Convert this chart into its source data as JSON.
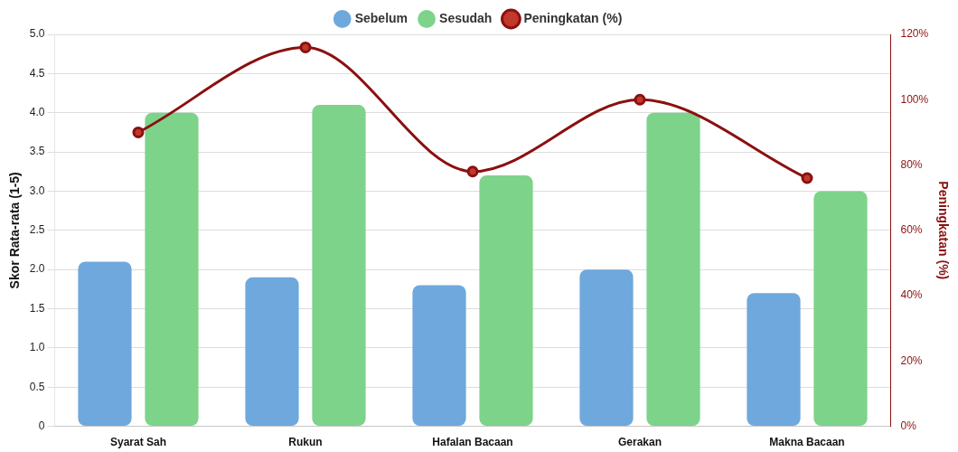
{
  "chart_data": {
    "type": "bar",
    "categories": [
      "Syarat Sah",
      "Rukun",
      "Hafalan Bacaan",
      "Gerakan",
      "Makna Bacaan"
    ],
    "series": [
      {
        "name": "Sebelum",
        "color": "#6fa8dc",
        "values": [
          2.1,
          1.9,
          1.8,
          2.0,
          1.7
        ]
      },
      {
        "name": "Sesudah",
        "color": "#7dd38a",
        "values": [
          4.0,
          4.1,
          3.2,
          4.0,
          3.0
        ]
      },
      {
        "name": "Peningkatan (%)",
        "type": "line",
        "axis": "y2",
        "color": "#8b1010",
        "values": [
          90,
          116,
          78,
          100,
          76
        ]
      }
    ],
    "ylabel": "Skor Rata-rata (1-5)",
    "y2label": "Peningkatan (%)",
    "ylim": [
      0,
      5
    ],
    "yticks": [
      {
        "value": 0,
        "label": "0"
      },
      0.5,
      {
        "value": 1,
        "label": "1.0"
      },
      1.5,
      {
        "value": 2,
        "label": "2.0"
      },
      2.5,
      {
        "value": 3,
        "label": "3.0"
      },
      3.5,
      {
        "value": 4,
        "label": "4.0"
      },
      4.5,
      {
        "value": 5,
        "label": "5.0"
      }
    ],
    "y2lim": [
      0,
      120
    ],
    "y2ticks": [
      {
        "value": 0,
        "label": "0%"
      },
      {
        "value": 20,
        "label": "20%"
      },
      {
        "value": 40,
        "label": "40%"
      },
      {
        "value": 60,
        "label": "60%"
      },
      {
        "value": 80,
        "label": "80%"
      },
      {
        "value": 100,
        "label": "100%"
      },
      {
        "value": 120,
        "label": "120%"
      }
    ],
    "grid": "y",
    "legend": "top",
    "marker": "circle"
  }
}
